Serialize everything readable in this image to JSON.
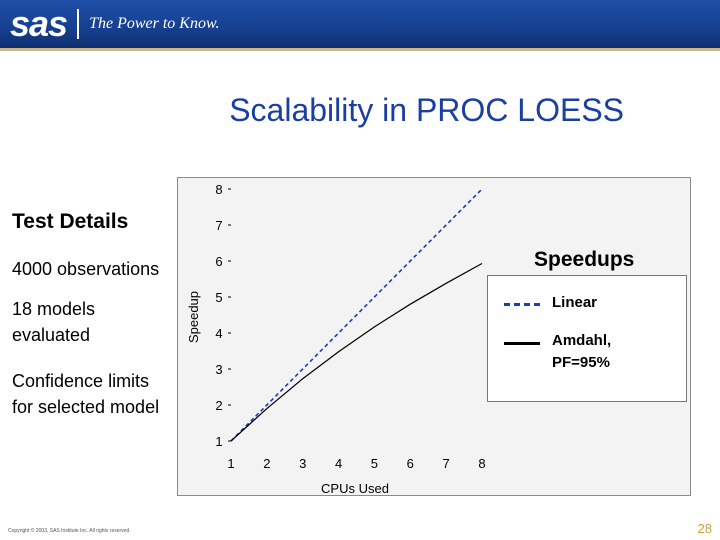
{
  "header": {
    "logo": "sas",
    "tagline": "The Power to Know."
  },
  "slide": {
    "title": "Scalability in PROC LOESS",
    "test_details_heading": "Test Details",
    "observations": "4000 observations",
    "models": "18 models evaluated",
    "confidence": "Confidence limits for selected model"
  },
  "legend": {
    "title": "Speedups",
    "linear": "Linear",
    "amdahl": "Amdahl, PF=95%"
  },
  "footer": {
    "copyright": "Copyright © 2003, SAS Institute Inc. All rights reserved.",
    "page": "28"
  },
  "colors": {
    "title_blue": "#1a3fa0",
    "header_blue": "#163f8f",
    "linear": "#1b3fb0",
    "amdahl": "#000000",
    "page_num": "#c9a23a"
  },
  "chart_data": {
    "type": "line",
    "xlabel": "CPUs Used",
    "ylabel": "Speedup",
    "xlim": [
      1,
      8
    ],
    "ylim": [
      1,
      8
    ],
    "x_ticks": [
      1,
      2,
      3,
      4,
      5,
      6,
      7,
      8
    ],
    "y_ticks": [
      1,
      2,
      3,
      4,
      5,
      6,
      7,
      8
    ],
    "series": [
      {
        "name": "Linear",
        "x": [
          1,
          2,
          3,
          4,
          5,
          6,
          7,
          8
        ],
        "values": [
          1,
          2,
          3,
          4,
          5,
          6,
          7,
          8
        ]
      },
      {
        "name": "Amdahl, PF=95%",
        "x": [
          1,
          2,
          3,
          4,
          5,
          6,
          7,
          8
        ],
        "values": [
          1,
          1.9,
          2.73,
          3.48,
          4.17,
          4.8,
          5.38,
          5.93
        ]
      }
    ]
  }
}
